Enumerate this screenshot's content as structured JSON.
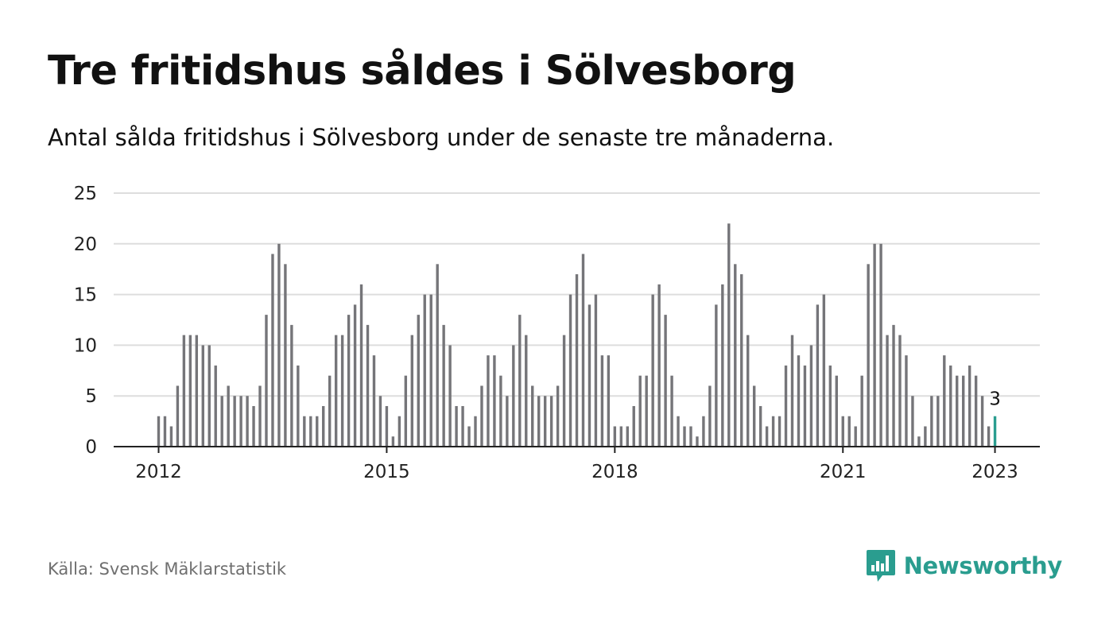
{
  "header": {
    "title": "Tre fritidshus såldes i Sölvesborg",
    "subtitle": "Antal sålda fritidshus i Sölvesborg under de senaste tre månaderna."
  },
  "footer": {
    "source": "Källa: Svensk Mäklarstatistik",
    "brand": "Newsworthy"
  },
  "colors": {
    "bar": "#757579",
    "highlight": "#2a9d8f",
    "grid": "#dddddd",
    "brand": "#2a9d8f"
  },
  "chart_data": {
    "type": "bar",
    "title": "Tre fritidshus såldes i Sölvesborg",
    "xlabel": "",
    "ylabel": "",
    "ylim": [
      0,
      25
    ],
    "yticks": [
      0,
      5,
      10,
      15,
      20,
      25
    ],
    "x_tick_labels": [
      "2012",
      "2015",
      "2018",
      "2021",
      "2023"
    ],
    "start": "2012-01",
    "end": "2023-01",
    "grid": true,
    "legend": "none",
    "highlight_label": "3",
    "values": [
      3,
      3,
      2,
      6,
      11,
      11,
      11,
      10,
      10,
      8,
      5,
      6,
      5,
      5,
      5,
      4,
      6,
      13,
      19,
      20,
      18,
      12,
      8,
      3,
      3,
      3,
      4,
      7,
      11,
      11,
      13,
      14,
      16,
      12,
      9,
      5,
      4,
      1,
      3,
      7,
      11,
      13,
      15,
      15,
      18,
      12,
      10,
      4,
      4,
      2,
      3,
      6,
      9,
      9,
      7,
      5,
      10,
      13,
      11,
      6,
      5,
      5,
      5,
      6,
      11,
      15,
      17,
      19,
      14,
      15,
      9,
      9,
      2,
      2,
      2,
      4,
      7,
      7,
      15,
      16,
      13,
      7,
      3,
      2,
      2,
      1,
      3,
      6,
      14,
      16,
      22,
      18,
      17,
      11,
      6,
      4,
      2,
      3,
      3,
      8,
      11,
      9,
      8,
      10,
      14,
      15,
      8,
      7,
      3,
      3,
      2,
      7,
      18,
      20,
      20,
      11,
      12,
      11,
      9,
      5,
      1,
      2,
      5,
      5,
      9,
      8,
      7,
      7,
      8,
      7,
      5,
      2,
      3
    ]
  }
}
